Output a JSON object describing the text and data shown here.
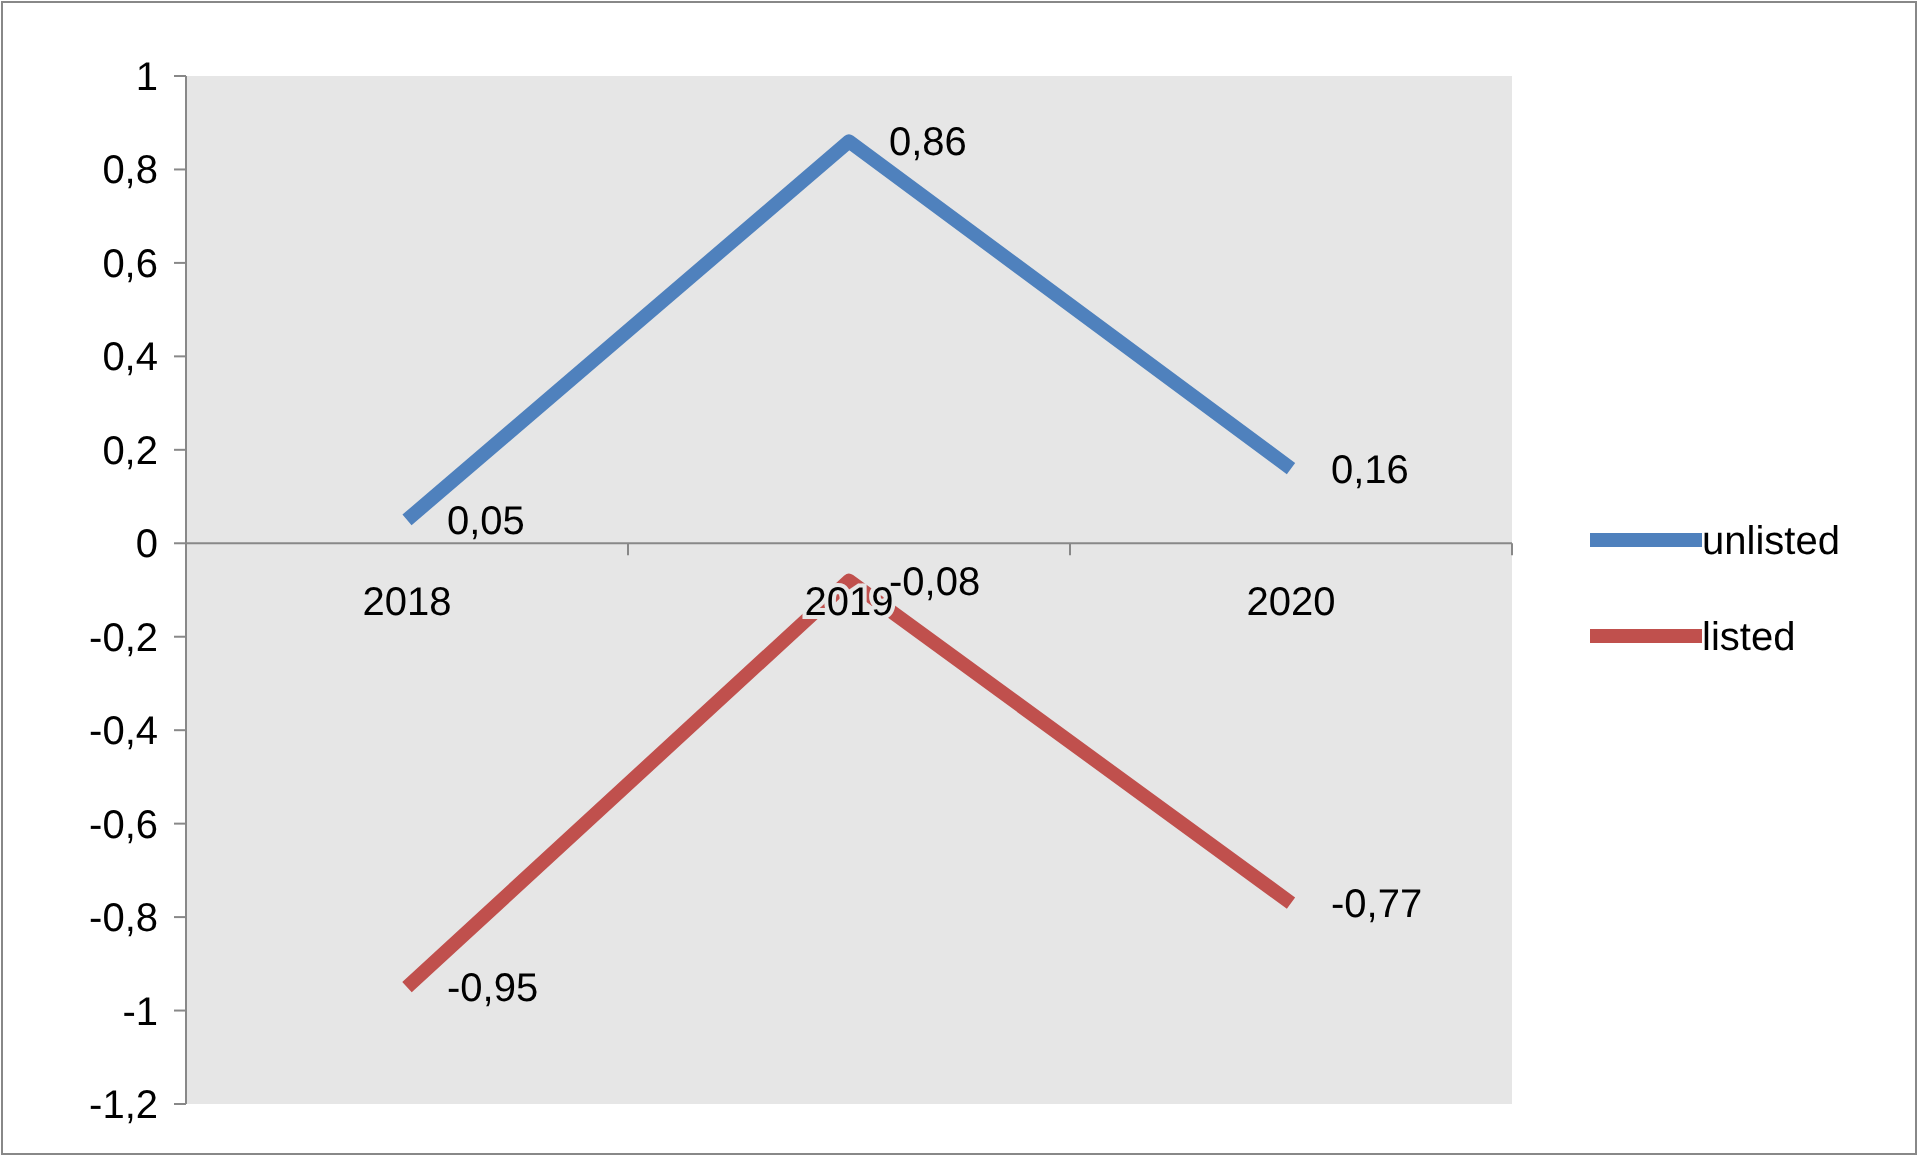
{
  "chart_data": {
    "type": "line",
    "categories": [
      "2018",
      "2019",
      "2020"
    ],
    "series": [
      {
        "name": "unlisted",
        "color": "#4f81bd",
        "values": [
          0.05,
          0.86,
          0.16
        ],
        "value_labels": [
          "0,05",
          "0,86",
          "0,16"
        ]
      },
      {
        "name": "listed",
        "color": "#c0504d",
        "values": [
          -0.95,
          -0.08,
          -0.77
        ],
        "value_labels": [
          "-0,95",
          "-0,08",
          "-0,77"
        ]
      }
    ],
    "ylim": [
      -1.2,
      1
    ],
    "yticks": [
      {
        "value": 1,
        "label": "1"
      },
      {
        "value": 0.8,
        "label": "0,8"
      },
      {
        "value": 0.6,
        "label": "0,6"
      },
      {
        "value": 0.4,
        "label": "0,4"
      },
      {
        "value": 0.2,
        "label": "0,2"
      },
      {
        "value": 0,
        "label": "0"
      },
      {
        "value": -0.2,
        "label": "-0,2"
      },
      {
        "value": -0.4,
        "label": "-0,4"
      },
      {
        "value": -0.6,
        "label": "-0,6"
      },
      {
        "value": -0.8,
        "label": "-0,8"
      },
      {
        "value": -1,
        "label": "-1"
      },
      {
        "value": -1.2,
        "label": "-1,2"
      }
    ],
    "grid": false,
    "legend": "right",
    "marker": "none",
    "line_style": "solid"
  }
}
